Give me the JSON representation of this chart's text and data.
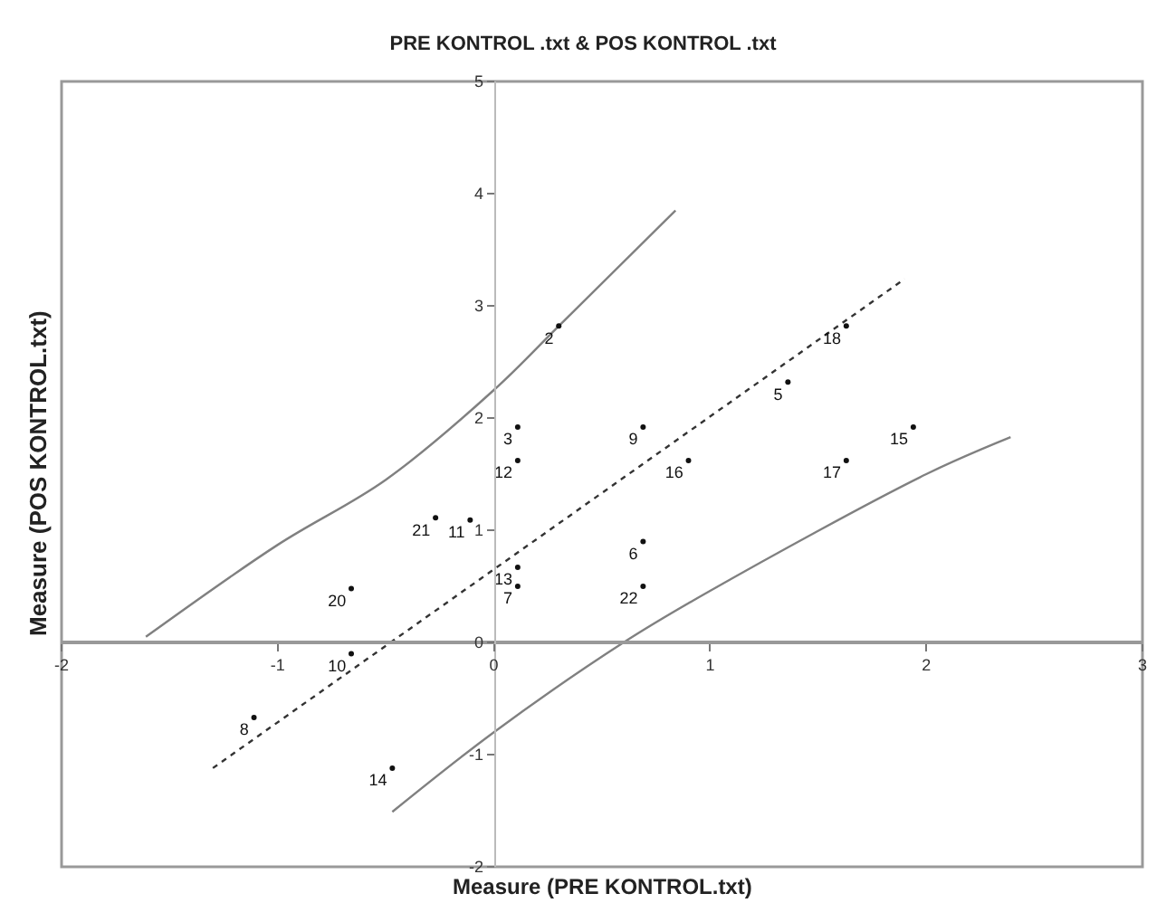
{
  "chart_data": {
    "type": "line",
    "title": "PRE KONTROL .txt & POS KONTROL .txt",
    "xlabel": "Measure (PRE KONTROL.txt)",
    "ylabel": "Measure (POS KONTROL.txt)",
    "xlim": [
      -2,
      3
    ],
    "ylim": [
      -2,
      5
    ],
    "xticks": [
      -2,
      -1,
      0,
      1,
      2,
      3
    ],
    "yticks": [
      -2,
      -1,
      0,
      1,
      2,
      3,
      4,
      5
    ],
    "grid": false,
    "legend": false,
    "series": [
      {
        "color": "#333333",
        "line_style": "dotted",
        "x": [
          -1.3,
          1.9
        ],
        "values": [
          -1.12,
          3.24
        ]
      },
      {
        "color": "#808080",
        "line_style": "solid",
        "x": [
          -1.61,
          -1.0,
          -0.5,
          0.0,
          0.3,
          0.84
        ],
        "values": [
          0.05,
          0.87,
          1.45,
          2.25,
          2.82,
          3.85
        ]
      },
      {
        "color": "#808080",
        "line_style": "solid",
        "x": [
          -0.47,
          0.0,
          0.6,
          1.0,
          2.0,
          2.39
        ],
        "values": [
          -1.51,
          -0.8,
          0.0,
          0.46,
          1.5,
          1.83
        ]
      },
      {
        "type": "scatter",
        "color": "#111111",
        "name": "2",
        "x": [
          0.3
        ],
        "values": [
          2.82
        ]
      },
      {
        "type": "scatter",
        "color": "#111111",
        "name": "3",
        "x": [
          0.11
        ],
        "values": [
          1.92
        ]
      },
      {
        "type": "scatter",
        "color": "#111111",
        "name": "12",
        "x": [
          0.11
        ],
        "values": [
          1.62
        ]
      },
      {
        "type": "scatter",
        "color": "#111111",
        "name": "9",
        "x": [
          0.69
        ],
        "values": [
          1.92
        ]
      },
      {
        "type": "scatter",
        "color": "#111111",
        "name": "16",
        "x": [
          0.9
        ],
        "values": [
          1.62
        ]
      },
      {
        "type": "scatter",
        "color": "#111111",
        "name": "5",
        "x": [
          1.36
        ],
        "values": [
          2.32
        ]
      },
      {
        "type": "scatter",
        "color": "#111111",
        "name": "18",
        "x": [
          1.63
        ],
        "values": [
          2.82
        ]
      },
      {
        "type": "scatter",
        "color": "#111111",
        "name": "15",
        "x": [
          1.94
        ],
        "values": [
          1.92
        ]
      },
      {
        "type": "scatter",
        "color": "#111111",
        "name": "17",
        "x": [
          1.63
        ],
        "values": [
          1.62
        ]
      },
      {
        "type": "scatter",
        "color": "#111111",
        "name": "21",
        "x": [
          -0.27
        ],
        "values": [
          1.11
        ]
      },
      {
        "type": "scatter",
        "color": "#111111",
        "name": "11",
        "x": [
          -0.11
        ],
        "values": [
          1.09
        ]
      },
      {
        "type": "scatter",
        "color": "#111111",
        "name": "13",
        "x": [
          0.11
        ],
        "values": [
          0.67
        ]
      },
      {
        "type": "scatter",
        "color": "#111111",
        "name": "7",
        "x": [
          0.11
        ],
        "values": [
          0.5
        ]
      },
      {
        "type": "scatter",
        "color": "#111111",
        "name": "6",
        "x": [
          0.69
        ],
        "values": [
          0.9
        ]
      },
      {
        "type": "scatter",
        "color": "#111111",
        "name": "22",
        "x": [
          0.69
        ],
        "values": [
          0.5
        ]
      },
      {
        "type": "scatter",
        "color": "#111111",
        "name": "20",
        "x": [
          -0.66
        ],
        "values": [
          0.48
        ]
      },
      {
        "type": "scatter",
        "color": "#111111",
        "name": "10",
        "x": [
          -0.66
        ],
        "values": [
          -0.1
        ]
      },
      {
        "type": "scatter",
        "color": "#111111",
        "name": "8",
        "x": [
          -1.11
        ],
        "values": [
          -0.67
        ]
      },
      {
        "type": "scatter",
        "color": "#111111",
        "name": "14",
        "x": [
          -0.47
        ],
        "values": [
          -1.12
        ]
      }
    ]
  }
}
